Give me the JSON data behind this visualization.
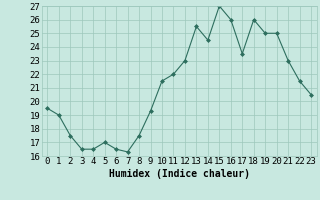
{
  "x": [
    0,
    1,
    2,
    3,
    4,
    5,
    6,
    7,
    8,
    9,
    10,
    11,
    12,
    13,
    14,
    15,
    16,
    17,
    18,
    19,
    20,
    21,
    22,
    23
  ],
  "y": [
    19.5,
    19.0,
    17.5,
    16.5,
    16.5,
    17.0,
    16.5,
    16.3,
    17.5,
    19.3,
    21.5,
    22.0,
    23.0,
    25.5,
    24.5,
    27.0,
    26.0,
    23.5,
    26.0,
    25.0,
    25.0,
    23.0,
    21.5,
    20.5
  ],
  "line_color": "#2d6e5e",
  "marker_color": "#2d6e5e",
  "bg_color": "#c8e8e0",
  "grid_color": "#9dc8bc",
  "xlabel": "Humidex (Indice chaleur)",
  "ylim": [
    16,
    27
  ],
  "xlim_min": -0.5,
  "xlim_max": 23.5,
  "yticks": [
    16,
    17,
    18,
    19,
    20,
    21,
    22,
    23,
    24,
    25,
    26,
    27
  ],
  "xtick_labels": [
    "0",
    "1",
    "2",
    "3",
    "4",
    "5",
    "6",
    "7",
    "8",
    "9",
    "10",
    "11",
    "12",
    "13",
    "14",
    "15",
    "16",
    "17",
    "18",
    "19",
    "20",
    "21",
    "22",
    "23"
  ],
  "label_fontsize": 7,
  "tick_fontsize": 6.5
}
